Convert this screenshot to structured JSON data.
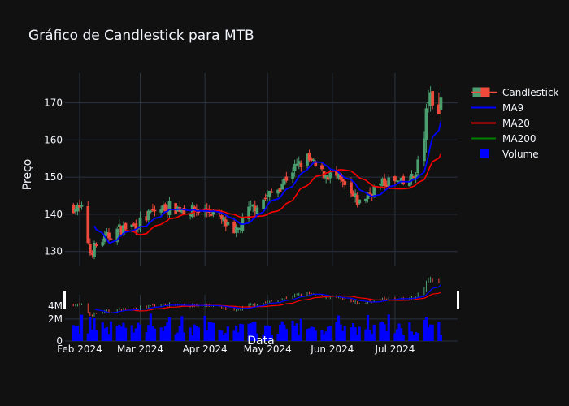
{
  "chart_data": {
    "type": "candlestick",
    "title": "Gráfico de Candlestick para MTB",
    "ylabel": "Preço",
    "xlabel": "Data",
    "price_ylim": [
      126,
      178
    ],
    "price_yticks": [
      130,
      140,
      150,
      160,
      170
    ],
    "volume_yticks": [
      {
        "v": 0,
        "label": "0"
      },
      {
        "v": 2000000,
        "label": "2M"
      }
    ],
    "xlim": [
      "2024-01-25",
      "2024-07-31"
    ],
    "xticks": [
      {
        "date": "2024-02-01",
        "label": "Feb 2024"
      },
      {
        "date": "2024-03-01",
        "label": "Mar 2024"
      },
      {
        "date": "2024-04-01",
        "label": "Apr 2024"
      },
      {
        "date": "2024-05-01",
        "label": "May 2024"
      },
      {
        "date": "2024-06-01",
        "label": "Jun 2024"
      },
      {
        "date": "2024-07-01",
        "label": "Jul 2024"
      }
    ],
    "grid": true,
    "legend_position": "right",
    "colors": {
      "background": "#111111",
      "grid": "#283442",
      "up": "#4a9e6f",
      "down": "#ef4a3c",
      "ma9": "#0000ff",
      "ma20": "#ff0000",
      "ma200": "#008000",
      "volume": "#0000ff",
      "text": "#f2f5fa"
    },
    "legend": [
      "Candlestick",
      "MA9",
      "MA20",
      "MA200",
      "Volume"
    ],
    "anchors": [
      {
        "date": "2024-01-29",
        "price": 142
      },
      {
        "date": "2024-02-02",
        "price": 141
      },
      {
        "date": "2024-02-06",
        "price": 130
      },
      {
        "date": "2024-02-12",
        "price": 133
      },
      {
        "date": "2024-02-20",
        "price": 136
      },
      {
        "date": "2024-02-28",
        "price": 137
      },
      {
        "date": "2024-03-08",
        "price": 141
      },
      {
        "date": "2024-03-15",
        "price": 142
      },
      {
        "date": "2024-03-25",
        "price": 141
      },
      {
        "date": "2024-04-03",
        "price": 141
      },
      {
        "date": "2024-04-10",
        "price": 138
      },
      {
        "date": "2024-04-15",
        "price": 134
      },
      {
        "date": "2024-04-22",
        "price": 141
      },
      {
        "date": "2024-04-29",
        "price": 144
      },
      {
        "date": "2024-05-06",
        "price": 147
      },
      {
        "date": "2024-05-13",
        "price": 152
      },
      {
        "date": "2024-05-20",
        "price": 155
      },
      {
        "date": "2024-05-27",
        "price": 151
      },
      {
        "date": "2024-06-03",
        "price": 150
      },
      {
        "date": "2024-06-10",
        "price": 145
      },
      {
        "date": "2024-06-14",
        "price": 143
      },
      {
        "date": "2024-06-21",
        "price": 147
      },
      {
        "date": "2024-06-28",
        "price": 149
      },
      {
        "date": "2024-07-05",
        "price": 148
      },
      {
        "date": "2024-07-10",
        "price": 150
      },
      {
        "date": "2024-07-15",
        "price": 160
      },
      {
        "date": "2024-07-17",
        "price": 172
      },
      {
        "date": "2024-07-19",
        "price": 168
      },
      {
        "date": "2024-07-23",
        "price": 171
      }
    ]
  }
}
